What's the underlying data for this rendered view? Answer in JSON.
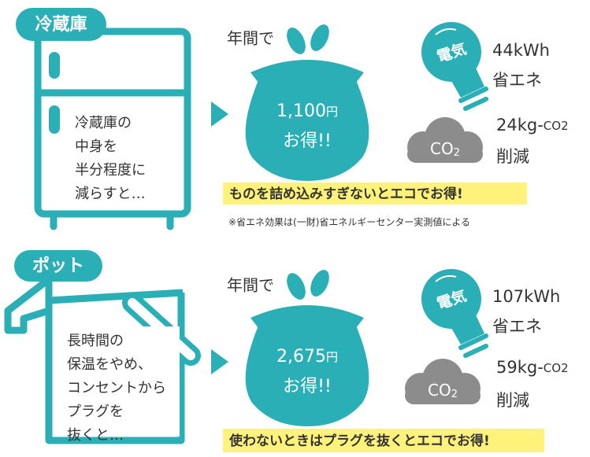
{
  "sections": [
    {
      "tag": "冷蔵庫",
      "description": [
        "冷蔵庫の",
        "中身を",
        "半分程度に",
        "減らすと…"
      ],
      "per_year": "年間で",
      "savings": {
        "amount": "1,100",
        "unit": "円",
        "label": "お得!!"
      },
      "electricity": {
        "icon": "電気",
        "amount": "44kWh",
        "label": "省エネ"
      },
      "co2": {
        "icon": {
          "main": "CO",
          "sub": "2"
        },
        "amount": "24kg-",
        "unit": "CO2",
        "label": "削減"
      },
      "highlight": "ものを詰め込みすぎないとエコでお得!",
      "note": "※省エネ効果は(一財)省エネルギーセンター実測値による"
    },
    {
      "tag": "ポット",
      "description": [
        "長時間の",
        "保温をやめ、",
        "コンセントから",
        "プラグを",
        "抜くと…"
      ],
      "per_year": "年間で",
      "savings": {
        "amount": "2,675",
        "unit": "円",
        "label": "お得!!"
      },
      "electricity": {
        "icon": "電気",
        "amount": "107kWh",
        "label": "省エネ"
      },
      "co2": {
        "icon": {
          "main": "CO",
          "sub": "2"
        },
        "amount": "59kg-",
        "unit": "CO2",
        "label": "削減"
      },
      "highlight": "使わないときはプラグを抜くとエコでお得!"
    }
  ]
}
